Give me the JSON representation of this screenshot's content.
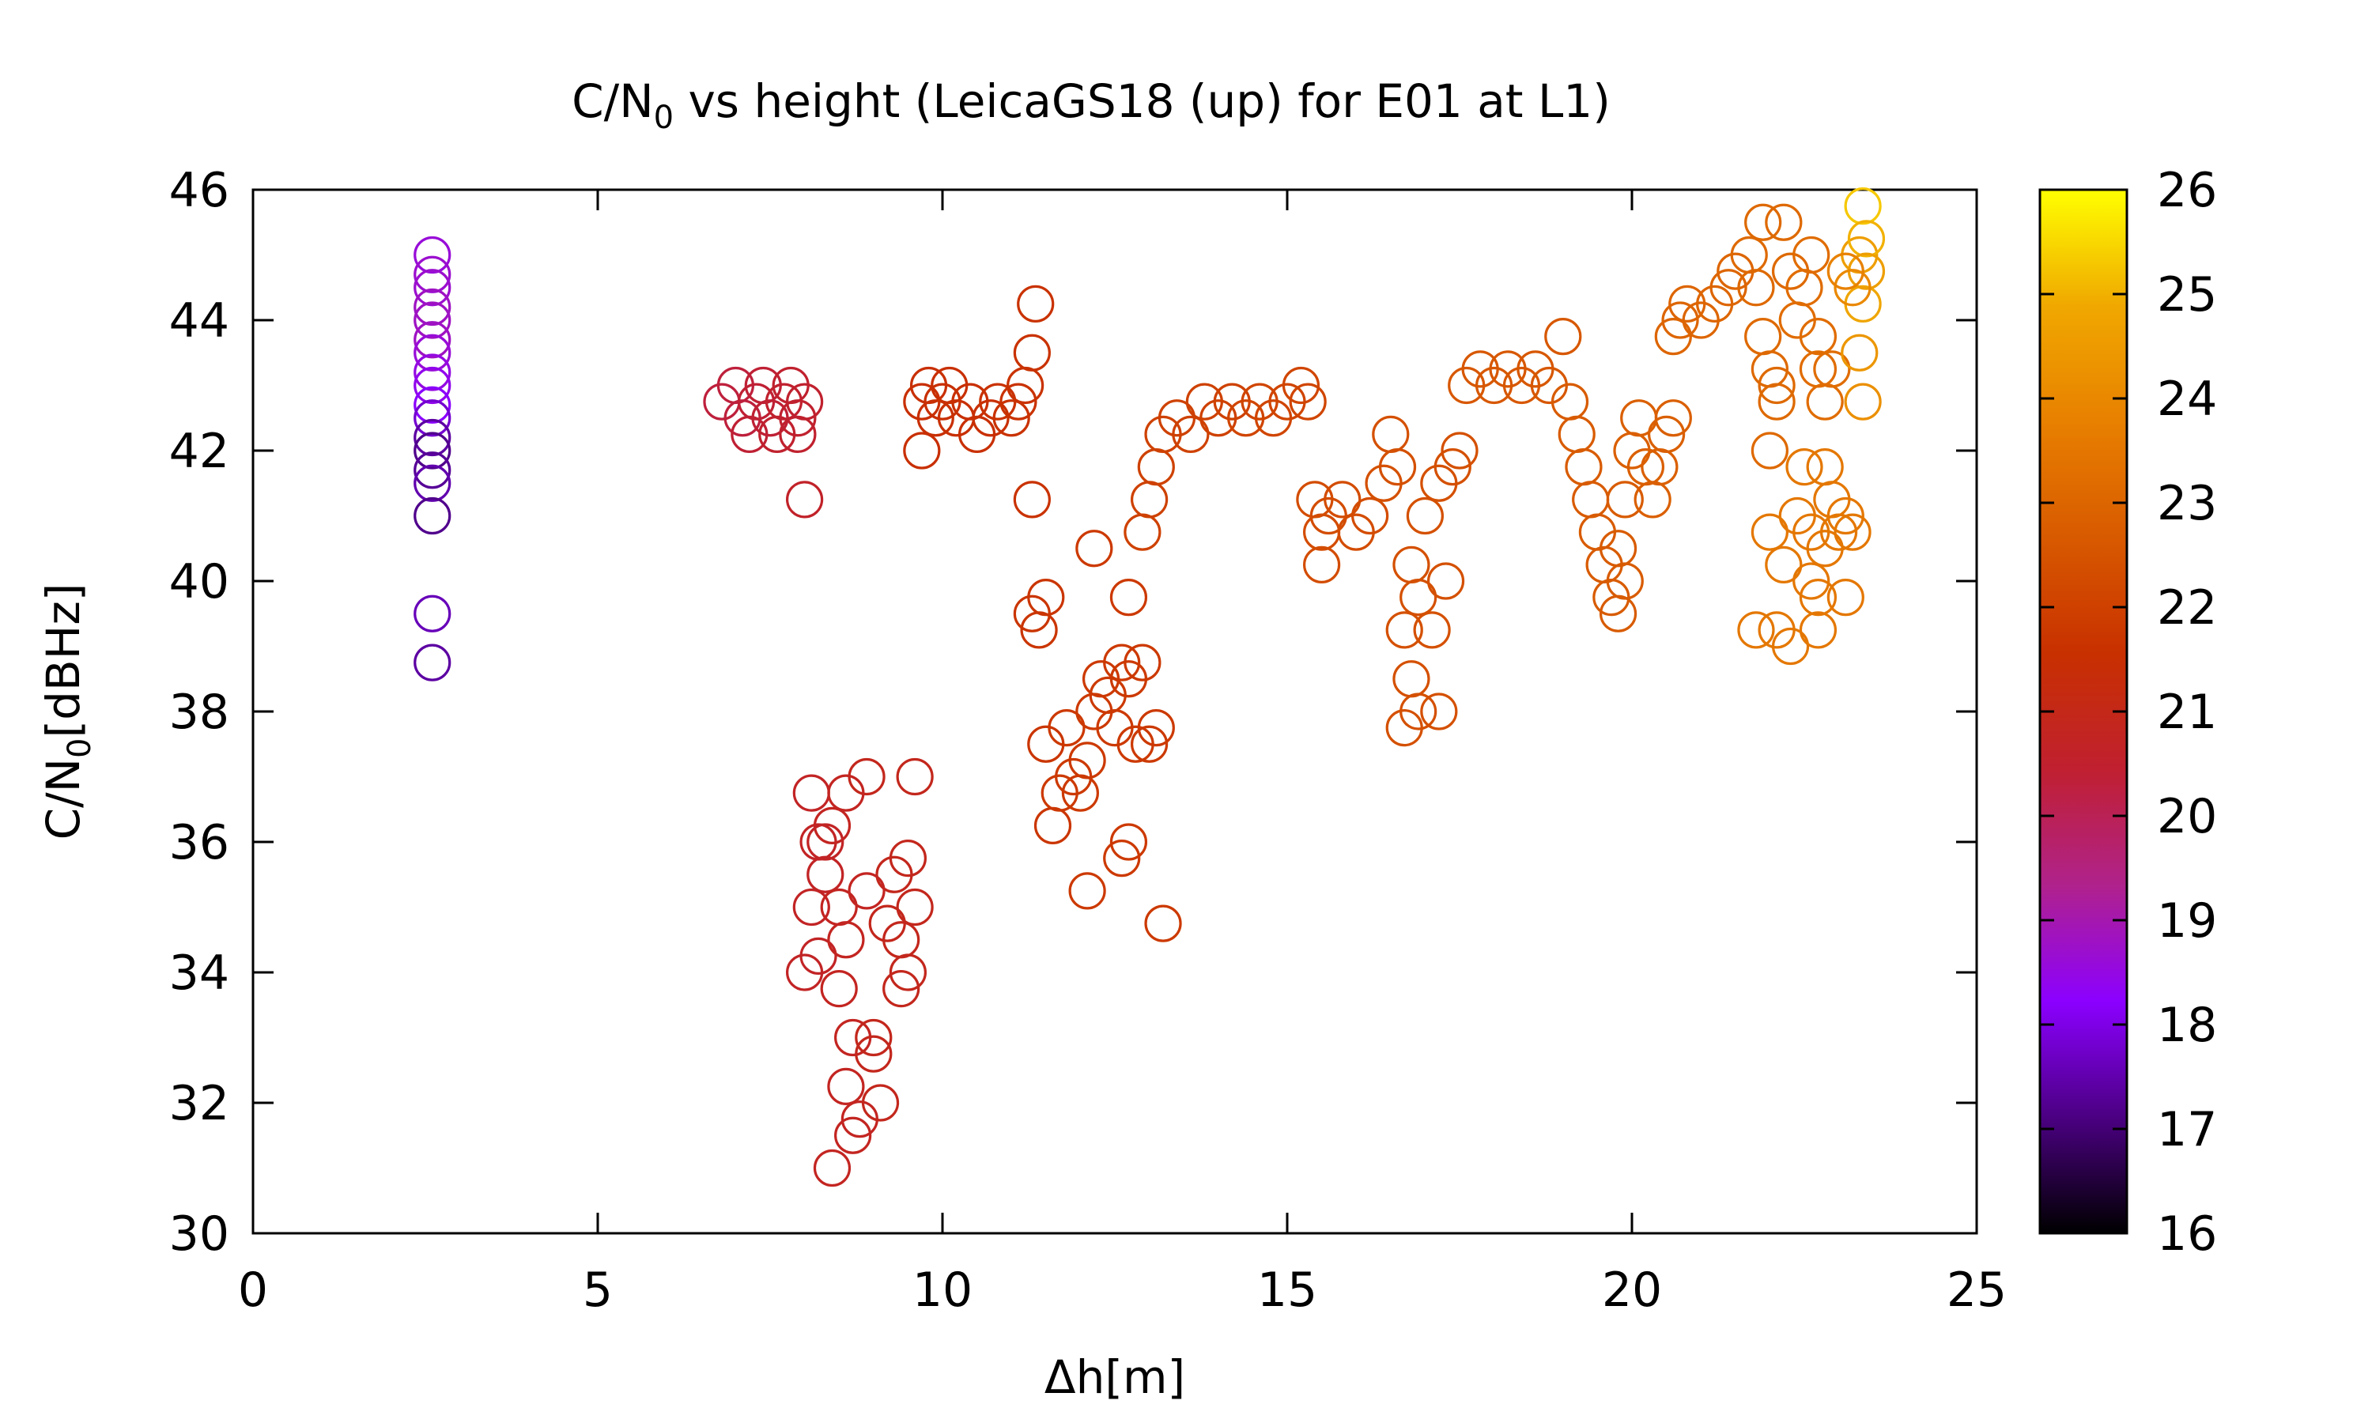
{
  "chart_data": {
    "type": "scatter",
    "title_main": "C/N",
    "title_sub": "0",
    "title_rest": " vs height (LeicaGS18 (up) for E01 at L1)",
    "xlabel": "Δh[m]",
    "ylabel_main": "C/N",
    "ylabel_sub": "0",
    "ylabel_rest": "[dBHz]",
    "xlim": [
      0,
      25
    ],
    "ylim": [
      30,
      46
    ],
    "xticks": [
      "0",
      "5",
      "10",
      "15",
      "20",
      "25"
    ],
    "yticks": [
      "30",
      "32",
      "34",
      "36",
      "38",
      "40",
      "42",
      "44",
      "46"
    ],
    "colorbar": {
      "range": [
        16,
        26
      ],
      "ticks": [
        "16",
        "17",
        "18",
        "19",
        "20",
        "21",
        "22",
        "23",
        "24",
        "25",
        "26"
      ],
      "palette": [
        "#000000",
        "#4b0082",
        "#8b00ff",
        "#b0228c",
        "#c02030",
        "#c83000",
        "#d85a00",
        "#e88000",
        "#f0a800",
        "#ffff00"
      ]
    },
    "marker": "open-circle",
    "points": [
      [
        2.6,
        45.0,
        18.6
      ],
      [
        2.6,
        44.7,
        18.7
      ],
      [
        2.6,
        44.5,
        18.7
      ],
      [
        2.6,
        44.2,
        18.8
      ],
      [
        2.6,
        44.0,
        18.8
      ],
      [
        2.6,
        43.7,
        18.8
      ],
      [
        2.6,
        43.5,
        18.6
      ],
      [
        2.6,
        43.2,
        18.5
      ],
      [
        2.6,
        43.0,
        18.4
      ],
      [
        2.6,
        42.7,
        18.2
      ],
      [
        2.6,
        42.5,
        17.8
      ],
      [
        2.6,
        42.2,
        17.4
      ],
      [
        2.6,
        42.0,
        17.2
      ],
      [
        2.6,
        41.7,
        17.3
      ],
      [
        2.6,
        41.5,
        17.5
      ],
      [
        2.6,
        41.0,
        17.2
      ],
      [
        2.6,
        39.5,
        17.6
      ],
      [
        2.6,
        38.75,
        17.4
      ],
      [
        6.8,
        42.75,
        20.3
      ],
      [
        7.0,
        43.0,
        20.3
      ],
      [
        7.1,
        42.5,
        20.3
      ],
      [
        7.2,
        42.25,
        20.4
      ],
      [
        7.3,
        42.75,
        20.4
      ],
      [
        7.4,
        43.0,
        20.4
      ],
      [
        7.5,
        42.5,
        20.4
      ],
      [
        7.6,
        42.25,
        20.5
      ],
      [
        7.7,
        42.75,
        20.5
      ],
      [
        7.8,
        43.0,
        20.5
      ],
      [
        7.9,
        42.5,
        20.5
      ],
      [
        8.0,
        42.75,
        20.5
      ],
      [
        8.0,
        41.25,
        20.6
      ],
      [
        7.9,
        42.25,
        20.5
      ],
      [
        8.1,
        36.75,
        20.7
      ],
      [
        8.2,
        36.0,
        20.7
      ],
      [
        8.3,
        35.5,
        20.7
      ],
      [
        8.1,
        35.0,
        20.7
      ],
      [
        8.2,
        34.25,
        20.7
      ],
      [
        8.0,
        34.0,
        20.7
      ],
      [
        8.4,
        36.25,
        20.8
      ],
      [
        8.5,
        35.0,
        20.8
      ],
      [
        8.6,
        34.5,
        20.8
      ],
      [
        8.5,
        33.75,
        20.8
      ],
      [
        8.7,
        33.0,
        20.8
      ],
      [
        8.6,
        32.25,
        20.8
      ],
      [
        8.8,
        31.75,
        20.8
      ],
      [
        8.4,
        31.0,
        20.8
      ],
      [
        8.7,
        31.5,
        20.8
      ],
      [
        9.0,
        32.75,
        20.9
      ],
      [
        9.1,
        32.0,
        20.9
      ],
      [
        9.0,
        33.0,
        20.9
      ],
      [
        8.9,
        37.0,
        20.9
      ],
      [
        9.2,
        34.75,
        20.9
      ],
      [
        9.3,
        35.5,
        20.9
      ],
      [
        9.4,
        34.5,
        20.9
      ],
      [
        9.5,
        35.75,
        20.9
      ],
      [
        9.6,
        35.0,
        20.9
      ],
      [
        9.4,
        33.75,
        20.9
      ],
      [
        9.6,
        37.0,
        20.9
      ],
      [
        9.5,
        34.0,
        20.9
      ],
      [
        8.9,
        35.25,
        20.8
      ],
      [
        8.3,
        36.0,
        20.7
      ],
      [
        8.6,
        36.75,
        20.8
      ],
      [
        9.7,
        42.75,
        21.5
      ],
      [
        9.8,
        43.0,
        21.5
      ],
      [
        9.9,
        42.5,
        21.5
      ],
      [
        10.0,
        42.75,
        21.5
      ],
      [
        10.1,
        43.0,
        21.5
      ],
      [
        10.2,
        42.5,
        21.5
      ],
      [
        10.4,
        42.75,
        21.5
      ],
      [
        10.5,
        42.25,
        21.5
      ],
      [
        10.7,
        42.5,
        21.5
      ],
      [
        10.8,
        42.75,
        21.6
      ],
      [
        11.0,
        42.5,
        21.6
      ],
      [
        11.1,
        42.75,
        21.6
      ],
      [
        11.2,
        43.0,
        21.6
      ],
      [
        11.3,
        43.5,
        21.6
      ],
      [
        11.35,
        44.25,
        21.6
      ],
      [
        9.7,
        42.0,
        21.5
      ],
      [
        11.3,
        41.25,
        21.6
      ],
      [
        11.3,
        39.5,
        21.7
      ],
      [
        11.4,
        39.25,
        21.7
      ],
      [
        11.5,
        39.75,
        21.7
      ],
      [
        11.5,
        37.5,
        21.7
      ],
      [
        11.6,
        36.25,
        21.7
      ],
      [
        11.7,
        36.75,
        21.8
      ],
      [
        11.8,
        37.75,
        21.8
      ],
      [
        11.9,
        37.0,
        21.8
      ],
      [
        12.0,
        36.75,
        21.8
      ],
      [
        12.1,
        37.25,
        21.8
      ],
      [
        12.2,
        38.0,
        21.8
      ],
      [
        12.2,
        40.5,
        21.8
      ],
      [
        12.3,
        38.5,
        21.8
      ],
      [
        12.4,
        38.25,
        21.8
      ],
      [
        12.5,
        37.75,
        21.8
      ],
      [
        12.6,
        38.75,
        21.8
      ],
      [
        12.7,
        38.5,
        21.8
      ],
      [
        12.8,
        37.5,
        21.8
      ],
      [
        12.9,
        38.75,
        21.8
      ],
      [
        13.0,
        37.5,
        21.8
      ],
      [
        13.1,
        37.75,
        21.8
      ],
      [
        12.7,
        36.0,
        21.8
      ],
      [
        12.6,
        35.75,
        21.8
      ],
      [
        12.1,
        35.25,
        21.8
      ],
      [
        13.2,
        34.75,
        21.8
      ],
      [
        12.7,
        39.75,
        21.8
      ],
      [
        12.9,
        40.75,
        22.0
      ],
      [
        13.0,
        41.25,
        22.0
      ],
      [
        13.1,
        41.75,
        22.0
      ],
      [
        13.2,
        42.25,
        22.0
      ],
      [
        13.4,
        42.5,
        22.0
      ],
      [
        13.6,
        42.25,
        22.0
      ],
      [
        13.8,
        42.75,
        22.0
      ],
      [
        14.0,
        42.5,
        22.0
      ],
      [
        14.2,
        42.75,
        22.0
      ],
      [
        14.4,
        42.5,
        22.1
      ],
      [
        14.6,
        42.75,
        22.1
      ],
      [
        14.8,
        42.5,
        22.1
      ],
      [
        15.0,
        42.75,
        22.1
      ],
      [
        15.2,
        43.0,
        22.1
      ],
      [
        15.3,
        42.75,
        22.1
      ],
      [
        15.4,
        41.25,
        22.3
      ],
      [
        15.5,
        40.75,
        22.3
      ],
      [
        15.6,
        41.0,
        22.3
      ],
      [
        15.5,
        40.25,
        22.3
      ],
      [
        15.8,
        41.25,
        22.3
      ],
      [
        16.0,
        40.75,
        22.3
      ],
      [
        16.2,
        41.0,
        22.3
      ],
      [
        16.4,
        41.5,
        22.4
      ],
      [
        16.5,
        42.25,
        22.4
      ],
      [
        16.6,
        41.75,
        22.4
      ],
      [
        16.7,
        39.25,
        22.4
      ],
      [
        16.8,
        38.5,
        22.4
      ],
      [
        16.7,
        37.75,
        22.4
      ],
      [
        16.8,
        40.25,
        22.4
      ],
      [
        16.9,
        39.75,
        22.4
      ],
      [
        16.9,
        38.0,
        22.4
      ],
      [
        17.0,
        41.0,
        22.4
      ],
      [
        17.2,
        41.5,
        22.4
      ],
      [
        17.4,
        41.75,
        22.4
      ],
      [
        17.5,
        42.0,
        22.4
      ],
      [
        17.3,
        40.0,
        22.4
      ],
      [
        17.1,
        39.25,
        22.4
      ],
      [
        17.2,
        38.0,
        22.4
      ],
      [
        17.6,
        43.0,
        22.6
      ],
      [
        17.8,
        43.25,
        22.6
      ],
      [
        18.0,
        43.0,
        22.6
      ],
      [
        18.2,
        43.25,
        22.6
      ],
      [
        18.4,
        43.0,
        22.6
      ],
      [
        18.6,
        43.25,
        22.6
      ],
      [
        18.8,
        43.0,
        22.6
      ],
      [
        19.0,
        43.75,
        22.6
      ],
      [
        19.1,
        42.75,
        22.7
      ],
      [
        19.2,
        42.25,
        22.7
      ],
      [
        19.3,
        41.75,
        22.7
      ],
      [
        19.4,
        41.25,
        22.7
      ],
      [
        19.5,
        40.75,
        22.7
      ],
      [
        19.6,
        40.25,
        22.7
      ],
      [
        19.7,
        39.75,
        22.7
      ],
      [
        19.8,
        39.5,
        22.7
      ],
      [
        19.9,
        40.0,
        22.7
      ],
      [
        19.8,
        40.5,
        22.7
      ],
      [
        19.9,
        41.25,
        22.7
      ],
      [
        20.0,
        42.0,
        22.8
      ],
      [
        20.1,
        42.5,
        22.8
      ],
      [
        20.2,
        41.75,
        22.8
      ],
      [
        20.3,
        41.25,
        22.8
      ],
      [
        20.4,
        41.75,
        22.8
      ],
      [
        20.5,
        42.25,
        22.8
      ],
      [
        20.6,
        42.5,
        22.8
      ],
      [
        20.6,
        43.75,
        23.0
      ],
      [
        20.7,
        44.0,
        23.0
      ],
      [
        20.8,
        44.25,
        23.0
      ],
      [
        21.0,
        44.0,
        23.0
      ],
      [
        21.2,
        44.25,
        23.0
      ],
      [
        21.4,
        44.5,
        23.0
      ],
      [
        21.5,
        44.75,
        23.0
      ],
      [
        21.7,
        45.0,
        23.1
      ],
      [
        21.8,
        44.5,
        23.1
      ],
      [
        21.9,
        45.5,
        23.1
      ],
      [
        21.9,
        43.75,
        23.1
      ],
      [
        22.0,
        43.25,
        23.1
      ],
      [
        22.1,
        42.75,
        23.1
      ],
      [
        22.0,
        42.0,
        23.1
      ],
      [
        22.1,
        43.0,
        23.1
      ],
      [
        22.2,
        45.5,
        23.1
      ],
      [
        22.3,
        44.75,
        23.1
      ],
      [
        22.4,
        44.0,
        23.2
      ],
      [
        22.5,
        44.5,
        23.2
      ],
      [
        22.6,
        45.0,
        23.2
      ],
      [
        22.7,
        43.75,
        23.2
      ],
      [
        22.8,
        42.75,
        23.2
      ],
      [
        22.7,
        43.25,
        23.2
      ],
      [
        22.9,
        43.25,
        23.2
      ],
      [
        21.8,
        39.25,
        23.5
      ],
      [
        22.0,
        40.75,
        23.5
      ],
      [
        22.1,
        39.25,
        23.5
      ],
      [
        22.2,
        40.25,
        23.5
      ],
      [
        22.3,
        39.0,
        23.5
      ],
      [
        22.4,
        41.0,
        23.5
      ],
      [
        22.5,
        41.75,
        23.5
      ],
      [
        22.6,
        40.0,
        23.5
      ],
      [
        22.7,
        39.75,
        23.5
      ],
      [
        22.7,
        39.25,
        23.5
      ],
      [
        22.8,
        40.5,
        23.5
      ],
      [
        22.9,
        41.25,
        23.5
      ],
      [
        23.0,
        40.75,
        23.5
      ],
      [
        23.1,
        41.0,
        23.5
      ],
      [
        23.2,
        40.75,
        23.5
      ],
      [
        23.1,
        39.75,
        23.5
      ],
      [
        22.8,
        41.75,
        23.5
      ],
      [
        22.6,
        40.75,
        23.5
      ],
      [
        23.3,
        45.0,
        24.6
      ],
      [
        23.35,
        45.75,
        25.3
      ],
      [
        23.4,
        45.25,
        25.0
      ],
      [
        23.35,
        44.25,
        24.8
      ],
      [
        23.3,
        43.5,
        24.4
      ],
      [
        23.35,
        42.75,
        24.2
      ],
      [
        23.4,
        44.75,
        24.6
      ],
      [
        23.2,
        44.5,
        24.0
      ],
      [
        23.1,
        44.75,
        23.8
      ]
    ]
  }
}
